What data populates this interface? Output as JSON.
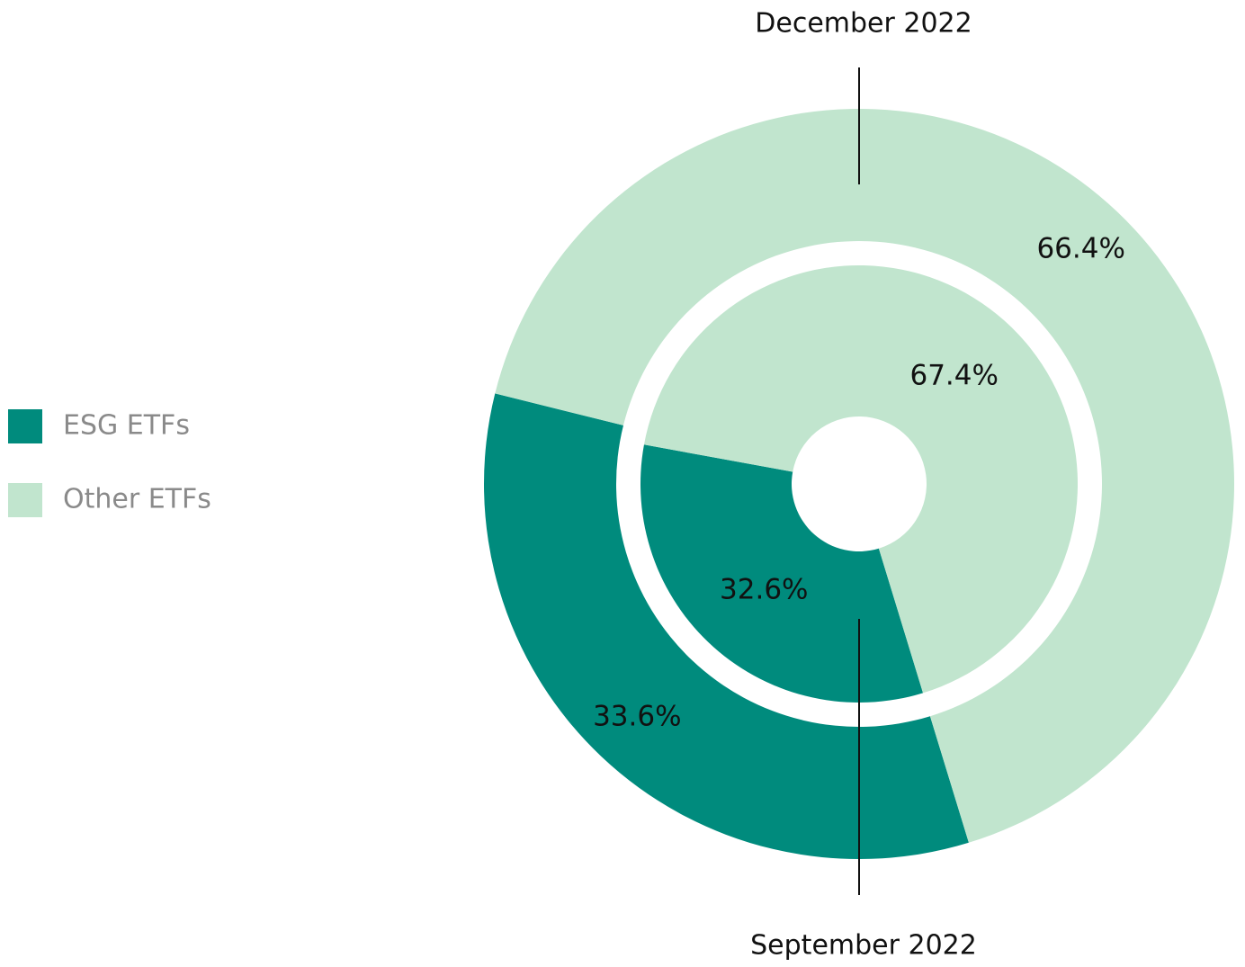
{
  "chart_data": {
    "type": "donut",
    "categories": [
      "ESG ETFs",
      "Other ETFs"
    ],
    "colors": [
      "#008b7d",
      "#c1e5ce"
    ],
    "series": [
      {
        "name": "December 2022",
        "values": [
          33.6,
          66.4
        ],
        "value_labels": [
          "33.6%",
          "66.4%"
        ]
      },
      {
        "name": "September 2022",
        "values": [
          32.6,
          67.4
        ],
        "value_labels": [
          "32.6%",
          "67.4%"
        ]
      }
    ]
  }
}
